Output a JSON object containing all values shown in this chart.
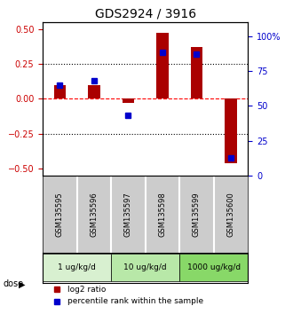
{
  "title": "GDS2924 / 3916",
  "samples": [
    "GSM135595",
    "GSM135596",
    "GSM135597",
    "GSM135598",
    "GSM135599",
    "GSM135600"
  ],
  "log2_ratio": [
    0.1,
    0.1,
    -0.03,
    0.47,
    0.37,
    -0.46
  ],
  "percentile_rank": [
    65,
    68,
    43,
    88,
    87,
    13
  ],
  "dose_groups": [
    {
      "label": "1 ug/kg/d",
      "samples": [
        0,
        1
      ],
      "color": "#d8f0d0"
    },
    {
      "label": "10 ug/kg/d",
      "samples": [
        2,
        3
      ],
      "color": "#b8e8a8"
    },
    {
      "label": "1000 ug/kg/d",
      "samples": [
        4,
        5
      ],
      "color": "#88d868"
    }
  ],
  "bar_color": "#aa0000",
  "dot_color": "#0000cc",
  "ylim_left": [
    -0.55,
    0.55
  ],
  "ylim_right": [
    0,
    110
  ],
  "yticks_left": [
    -0.5,
    -0.25,
    0,
    0.25,
    0.5
  ],
  "yticks_right": [
    0,
    25,
    50,
    75,
    100
  ],
  "ytick_labels_right": [
    "0",
    "25",
    "50",
    "75",
    "100%"
  ],
  "hlines": [
    0.25,
    0.0,
    -0.25
  ],
  "hline_styles": [
    "dotted",
    "dashed",
    "dotted"
  ],
  "hline_colors": [
    "black",
    "red",
    "black"
  ],
  "left_axis_color": "#cc0000",
  "right_axis_color": "#0000cc",
  "bar_width": 0.35,
  "sample_label_rotation": 90,
  "background_color": "#ffffff",
  "plot_bg_color": "#ffffff",
  "legend_labels": [
    "log2 ratio",
    "percentile rank within the sample"
  ],
  "legend_colors": [
    "#aa0000",
    "#0000cc"
  ]
}
